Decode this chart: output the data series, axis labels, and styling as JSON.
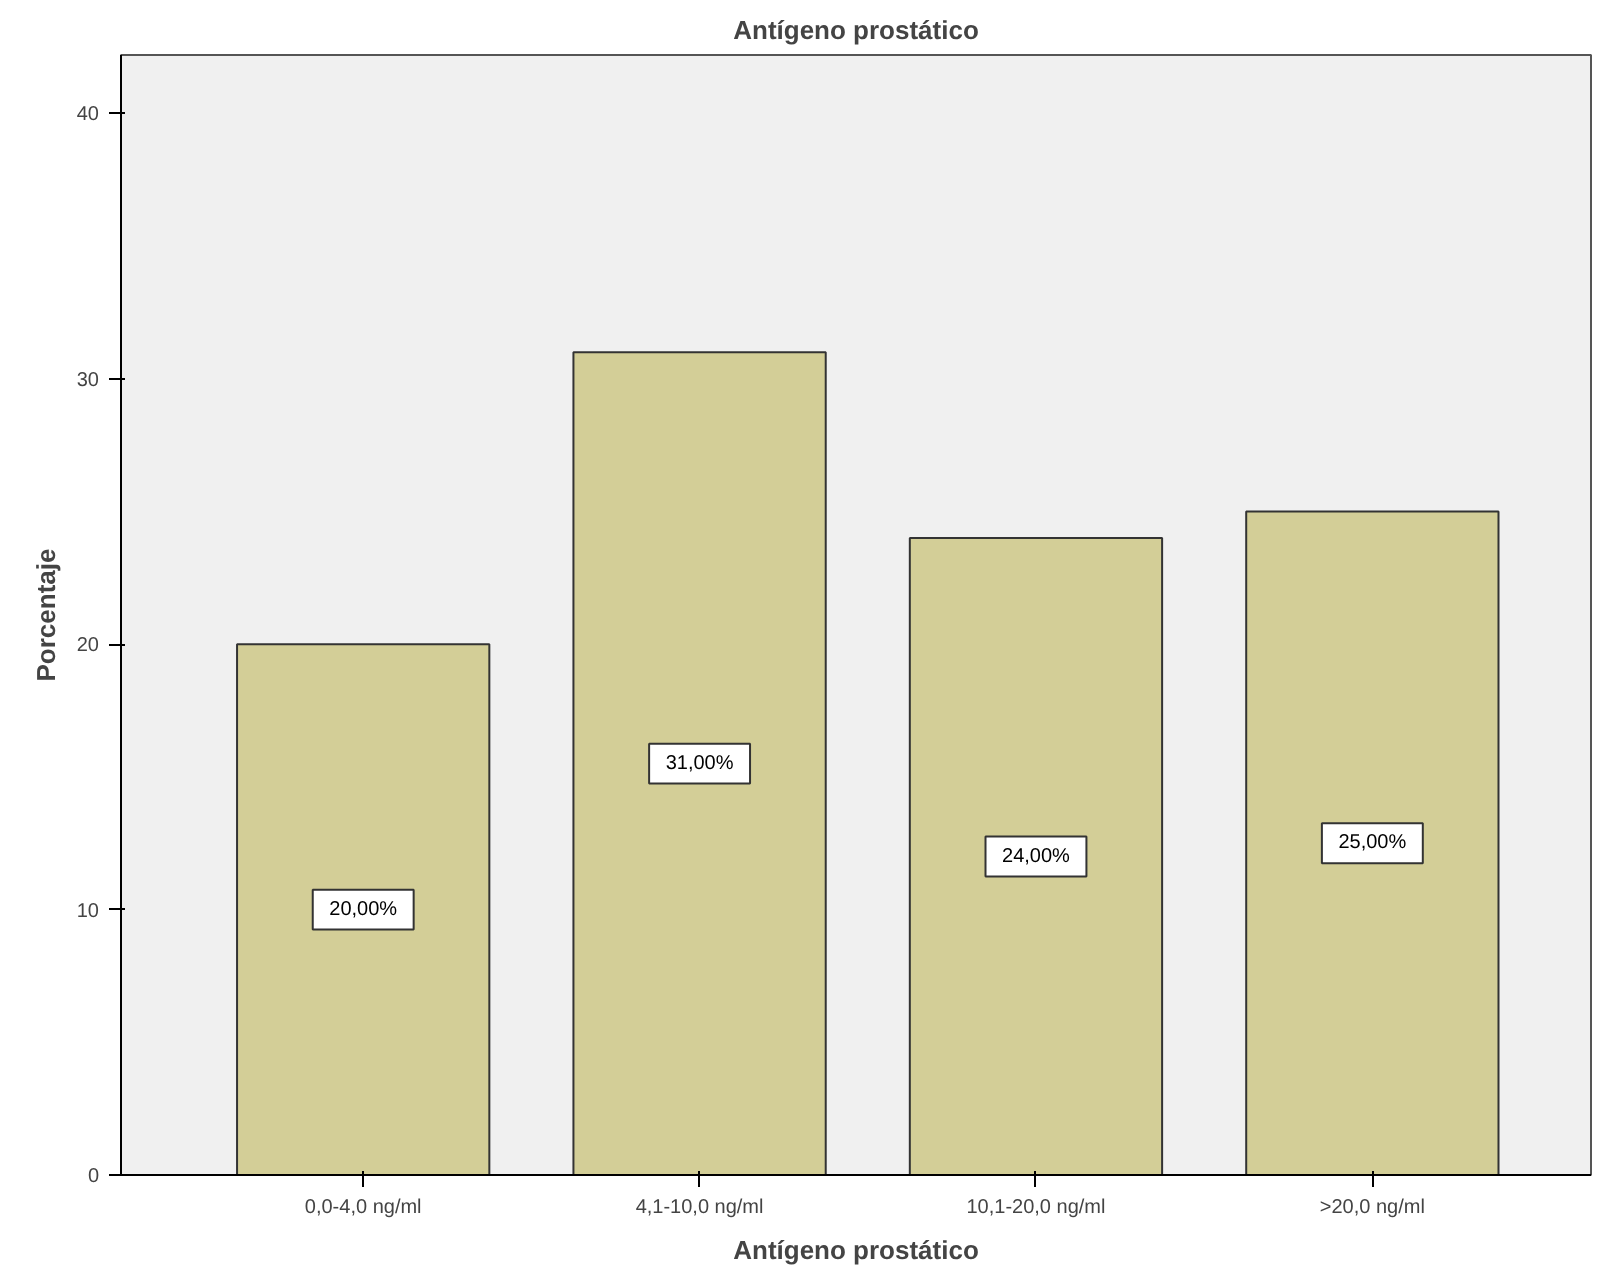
{
  "chart_data": {
    "type": "bar",
    "title": "Antígeno prostático",
    "xlabel": "Antígeno prostático",
    "ylabel": "Porcentaje",
    "categories": [
      "0,0-4,0 ng/ml",
      "4,1-10,0 ng/ml",
      "10,1-20,0 ng/ml",
      ">20,0 ng/ml"
    ],
    "values": [
      20,
      31,
      24,
      25
    ],
    "color": "#d3ce97",
    "value_labels": [
      "20,00%",
      "31,00%",
      "24,00%",
      "25,00%"
    ],
    "ylim": [
      0,
      42.2
    ],
    "yticks": [
      0,
      10,
      20,
      30,
      40
    ],
    "grid": false
  }
}
